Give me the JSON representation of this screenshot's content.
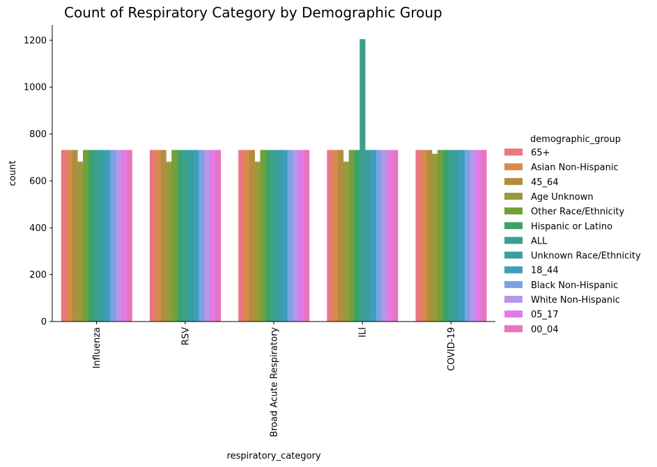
{
  "chart_data": {
    "type": "bar",
    "title": "Count of Respiratory Category by Demographic Group",
    "xlabel": "respiratory_category",
    "ylabel": "count",
    "ylim": [
      0,
      1265
    ],
    "yticks": [
      0,
      200,
      400,
      600,
      800,
      1000,
      1200
    ],
    "grid": false,
    "legend_position": "right",
    "legend_title": "demographic_group",
    "categories": [
      "Influenza",
      "RSV",
      "Broad Acute Respiratory",
      "ILI",
      "COVID-19"
    ],
    "series": [
      {
        "name": "65+",
        "color": "#e8777f",
        "values": [
          732,
          732,
          732,
          732,
          732
        ]
      },
      {
        "name": "Asian Non-Hispanic",
        "color": "#d98a4a",
        "values": [
          732,
          732,
          732,
          732,
          732
        ]
      },
      {
        "name": "45_64",
        "color": "#b38d3f",
        "values": [
          732,
          732,
          732,
          732,
          732
        ]
      },
      {
        "name": "Age Unknown",
        "color": "#999a3b",
        "values": [
          682,
          682,
          682,
          682,
          716
        ]
      },
      {
        "name": "Other Race/Ethnicity",
        "color": "#74a03a",
        "values": [
          732,
          732,
          732,
          732,
          732
        ]
      },
      {
        "name": "Hispanic or Latino",
        "color": "#3da26a",
        "values": [
          732,
          732,
          732,
          732,
          732
        ]
      },
      {
        "name": "ALL",
        "color": "#3aa08d",
        "values": [
          732,
          732,
          732,
          1205,
          732
        ]
      },
      {
        "name": "Unknown Race/Ethnicity",
        "color": "#3b9e9e",
        "values": [
          732,
          732,
          732,
          732,
          732
        ]
      },
      {
        "name": "18_44",
        "color": "#3f9dbd",
        "values": [
          732,
          732,
          732,
          732,
          732
        ]
      },
      {
        "name": "Black Non-Hispanic",
        "color": "#7aa3e5",
        "values": [
          732,
          732,
          732,
          732,
          732
        ]
      },
      {
        "name": "White Non-Hispanic",
        "color": "#b598e7",
        "values": [
          732,
          732,
          732,
          732,
          732
        ]
      },
      {
        "name": "05_17",
        "color": "#e379e6",
        "values": [
          732,
          732,
          732,
          732,
          732
        ]
      },
      {
        "name": "00_04",
        "color": "#e875c0",
        "values": [
          732,
          732,
          732,
          732,
          732
        ]
      }
    ]
  }
}
